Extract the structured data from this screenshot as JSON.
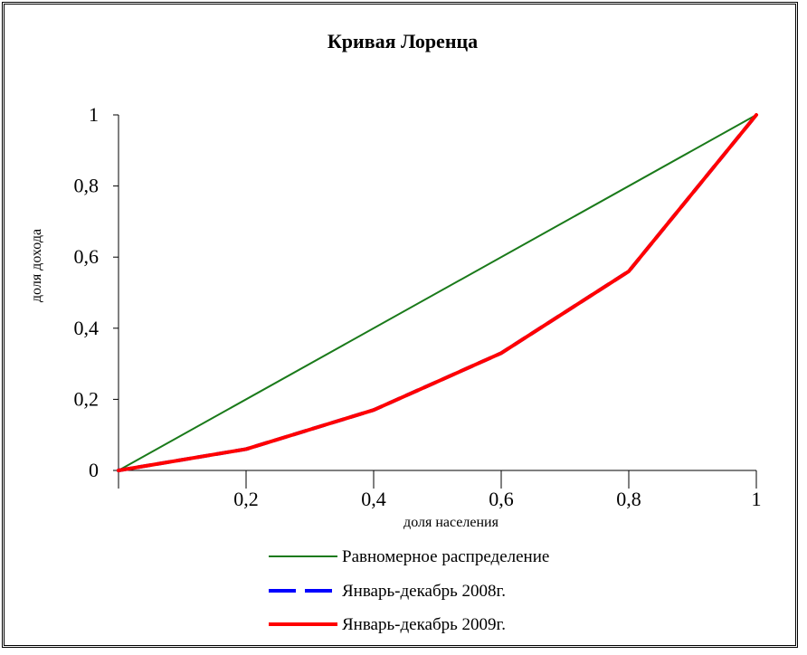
{
  "chart_data": {
    "type": "line",
    "title": "Кривая  Лоренца",
    "xlabel": "доля населения",
    "ylabel": "доля дохода",
    "xlim": [
      0,
      1
    ],
    "ylim": [
      0,
      1
    ],
    "x_ticks": [
      "0,2",
      "0,4",
      "0,6",
      "0,8",
      "1"
    ],
    "y_ticks": [
      "0",
      "0,2",
      "0,4",
      "0,6",
      "0,8",
      "1"
    ],
    "grid": false,
    "legend_position": "bottom",
    "series": [
      {
        "name": "Равномерное распределение",
        "color": "#1a7a1a",
        "style": "solid",
        "x": [
          0,
          1
        ],
        "y": [
          0,
          1
        ]
      },
      {
        "name": "Январь-декабрь 2008г.",
        "color": "#0000ff",
        "style": "dashed",
        "x": [
          0,
          0.2,
          0.4,
          0.6,
          0.8,
          1
        ],
        "y": [
          0,
          0.06,
          0.17,
          0.33,
          0.56,
          1
        ]
      },
      {
        "name": "Январь-декабрь 2009г.",
        "color": "#ff0000",
        "style": "solid",
        "x": [
          0,
          0.2,
          0.4,
          0.6,
          0.8,
          1
        ],
        "y": [
          0,
          0.06,
          0.17,
          0.33,
          0.56,
          1
        ]
      }
    ]
  }
}
